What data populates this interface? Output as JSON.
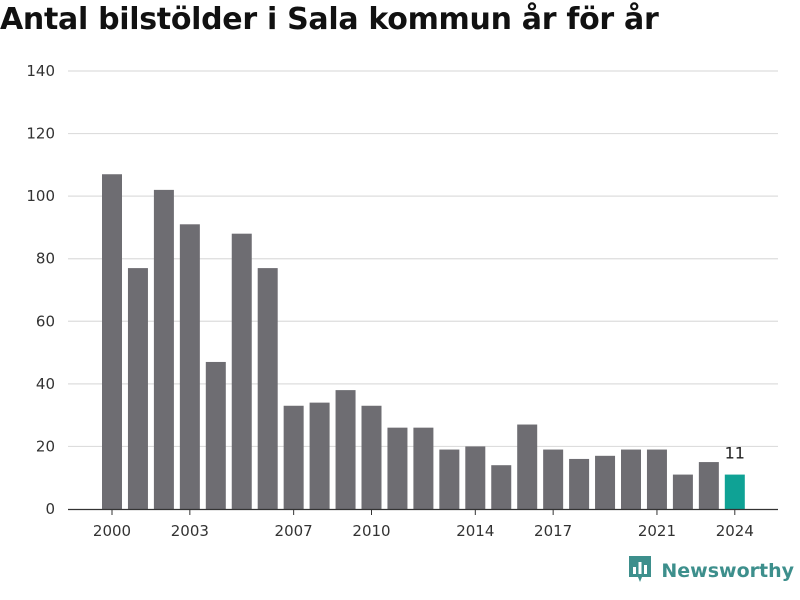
{
  "colors": {
    "bar": "#6e6d72",
    "highlight": "#0fa295",
    "grid": "#dddddd",
    "brand": "#3d8f8c"
  },
  "brand": {
    "name": "Newsworthy",
    "icon": "newsworthy-logo-icon"
  },
  "chart_data": {
    "type": "bar",
    "title": "Antal bilstölder i Sala kommun år för år",
    "xlabel": "",
    "ylabel": "",
    "ylim": [
      0,
      140
    ],
    "y_ticks": [
      0,
      20,
      40,
      60,
      80,
      100,
      120,
      140
    ],
    "grid": true,
    "categories": [
      2000,
      2001,
      2002,
      2003,
      2004,
      2005,
      2006,
      2007,
      2008,
      2009,
      2010,
      2011,
      2012,
      2013,
      2014,
      2015,
      2016,
      2017,
      2018,
      2019,
      2020,
      2021,
      2022,
      2023,
      2024
    ],
    "values": [
      107,
      77,
      102,
      91,
      47,
      88,
      77,
      33,
      34,
      38,
      33,
      26,
      26,
      19,
      20,
      14,
      27,
      19,
      16,
      17,
      19,
      19,
      11,
      15,
      11
    ],
    "x_ticks": [
      "2000",
      "2003",
      "2007",
      "2010",
      "2014",
      "2017",
      "2021",
      "2024"
    ],
    "highlight_category": 2024,
    "data_labels": [
      {
        "category": 2024,
        "text": "11"
      }
    ]
  }
}
